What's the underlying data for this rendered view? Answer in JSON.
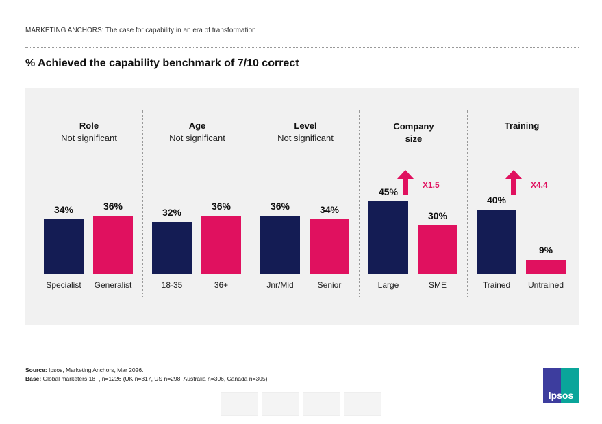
{
  "header": "MARKETING ANCHORS: The case for capability in an era of transformation",
  "chart_data": {
    "type": "bar",
    "title": "% Achieved the capability benchmark of 7/10 correct",
    "ylim": [
      0,
      100
    ],
    "colors": {
      "primary": "#141c54",
      "secondary": "#e0115f"
    },
    "groups": [
      {
        "title": "Role",
        "subtitle": "Not significant",
        "categories": [
          "Specialist",
          "Generalist"
        ],
        "values": [
          34,
          36
        ],
        "labels": [
          "34%",
          "36%"
        ]
      },
      {
        "title": "Age",
        "subtitle": "Not significant",
        "categories": [
          "18-35",
          "36+"
        ],
        "values": [
          32,
          36
        ],
        "labels": [
          "32%",
          "36%"
        ]
      },
      {
        "title": "Level",
        "subtitle": "Not significant",
        "categories": [
          "Jnr/Mid",
          "Senior"
        ],
        "values": [
          36,
          34
        ],
        "labels": [
          "36%",
          "34%"
        ]
      },
      {
        "title": "Company size",
        "subtitle": "",
        "categories": [
          "Large",
          "SME"
        ],
        "values": [
          45,
          30
        ],
        "labels": [
          "45%",
          "30%"
        ],
        "multiplier": "X1.5"
      },
      {
        "title": "Training",
        "subtitle": "",
        "categories": [
          "Trained",
          "Untrained"
        ],
        "values": [
          40,
          9
        ],
        "labels": [
          "40%",
          "9%"
        ],
        "multiplier": "X4.4"
      }
    ]
  },
  "footer": {
    "source_label": "Source:",
    "source": " Ipsos, Marketing Anchors, Mar 2026.",
    "base_label": "Base:",
    "base": " Global marketers 18+, n=1226 (UK n=317, US n=298, Australia n=306, Canada n=305)",
    "logo": "Ipsos"
  }
}
